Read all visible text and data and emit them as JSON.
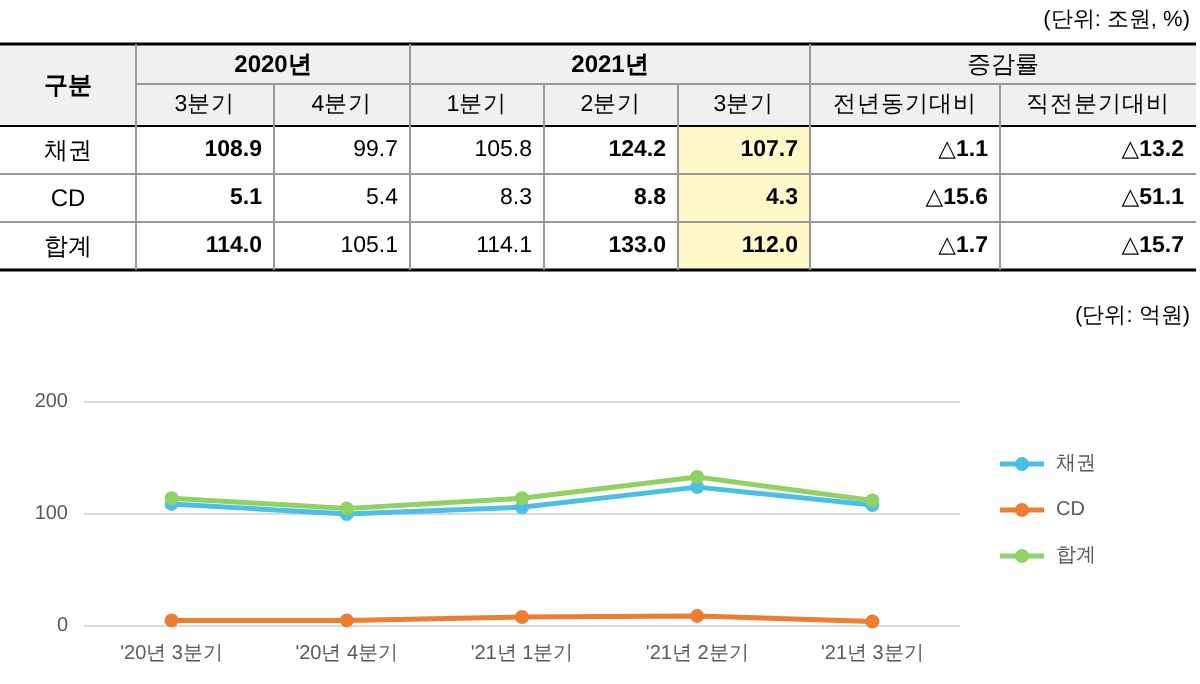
{
  "chart_data": [
    {
      "type": "other",
      "annotations": [
        "(단위: 조원, %)",
        "구분",
        "2020년",
        "2021년",
        "증감률",
        "3분기",
        "4분기",
        "1분기",
        "2분기",
        "3분기",
        "전년동기대비",
        "직전분기대비",
        "채권",
        "108.9",
        "99.7",
        "105.8",
        "124.2",
        "107.7",
        "△1.1",
        "△13.2",
        "CD",
        "5.1",
        "5.4",
        "8.3",
        "8.8",
        "4.3",
        "△15.6",
        "△51.1",
        "합계",
        "114.0",
        "105.1",
        "114.1",
        "133.0",
        "112.0",
        "△1.7",
        "△15.7"
      ]
    },
    {
      "type": "line",
      "categories": [
        "'20년 3분기",
        "'20년 4분기",
        "'21년 1분기",
        "'21년 2분기",
        "'21년 3분기"
      ],
      "series": [
        {
          "name": "채권",
          "color": "#4bbfe8",
          "values": [
            109,
            100,
            106,
            124,
            108
          ]
        },
        {
          "name": "CD",
          "color": "#ed7d31",
          "values": [
            5,
            5,
            8,
            9,
            4
          ]
        },
        {
          "name": "합계",
          "color": "#8fd163",
          "values": [
            114,
            105,
            114,
            133,
            112
          ]
        }
      ],
      "ylim": [
        0,
        200
      ],
      "yticks": [
        0,
        100,
        200
      ],
      "grid": "y",
      "legend": "right",
      "marker": "circle",
      "line_style": "solid",
      "annotations": [
        "(단위: 억원)"
      ]
    }
  ]
}
